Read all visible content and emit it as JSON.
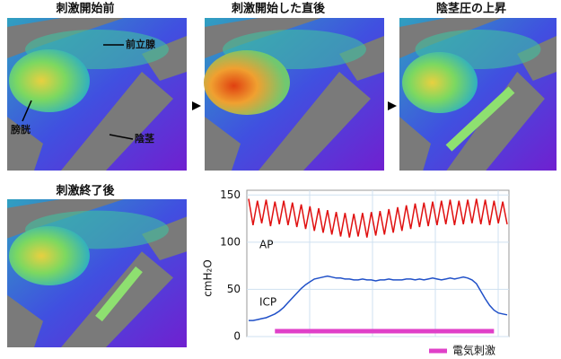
{
  "panels": [
    {
      "title": "刺激開始前",
      "annotations": [
        "前立腺",
        "膀胱",
        "陰茎"
      ]
    },
    {
      "title": "刺激開始した直後"
    },
    {
      "title": "陰茎圧の上昇"
    },
    {
      "title": "刺激終了後"
    }
  ],
  "chart_data": {
    "type": "line",
    "ylabel": "cmH₂O",
    "ylim": [
      0,
      155
    ],
    "yticks": [
      0,
      50,
      100,
      150
    ],
    "grid": true,
    "series": [
      {
        "name": "AP",
        "color": "#e01010",
        "values": [
          146,
          118,
          144,
          120,
          145,
          117,
          143,
          119,
          144,
          118,
          142,
          116,
          140,
          114,
          138,
          112,
          136,
          110,
          134,
          108,
          132,
          106,
          131,
          105,
          130,
          106,
          131,
          105,
          132,
          107,
          133,
          108,
          135,
          110,
          137,
          112,
          139,
          114,
          141,
          116,
          142,
          117,
          143,
          118,
          144,
          119,
          145,
          118,
          144,
          119,
          145,
          120,
          146,
          119,
          145,
          118,
          144,
          120,
          143,
          119
        ]
      },
      {
        "name": "ICP",
        "color": "#2050c8",
        "values": [
          17,
          17,
          18,
          19,
          20,
          22,
          24,
          27,
          31,
          36,
          41,
          46,
          51,
          55,
          58,
          61,
          62,
          63,
          64,
          63,
          62,
          62,
          61,
          61,
          60,
          60,
          61,
          60,
          60,
          59,
          60,
          60,
          61,
          60,
          60,
          60,
          61,
          61,
          60,
          61,
          60,
          61,
          62,
          61,
          60,
          61,
          62,
          61,
          62,
          63,
          62,
          60,
          56,
          48,
          40,
          33,
          28,
          25,
          24,
          23
        ]
      }
    ],
    "stimulus": {
      "name": "電気刺激",
      "color": "#e040c8",
      "start": 6,
      "end": 56
    }
  }
}
